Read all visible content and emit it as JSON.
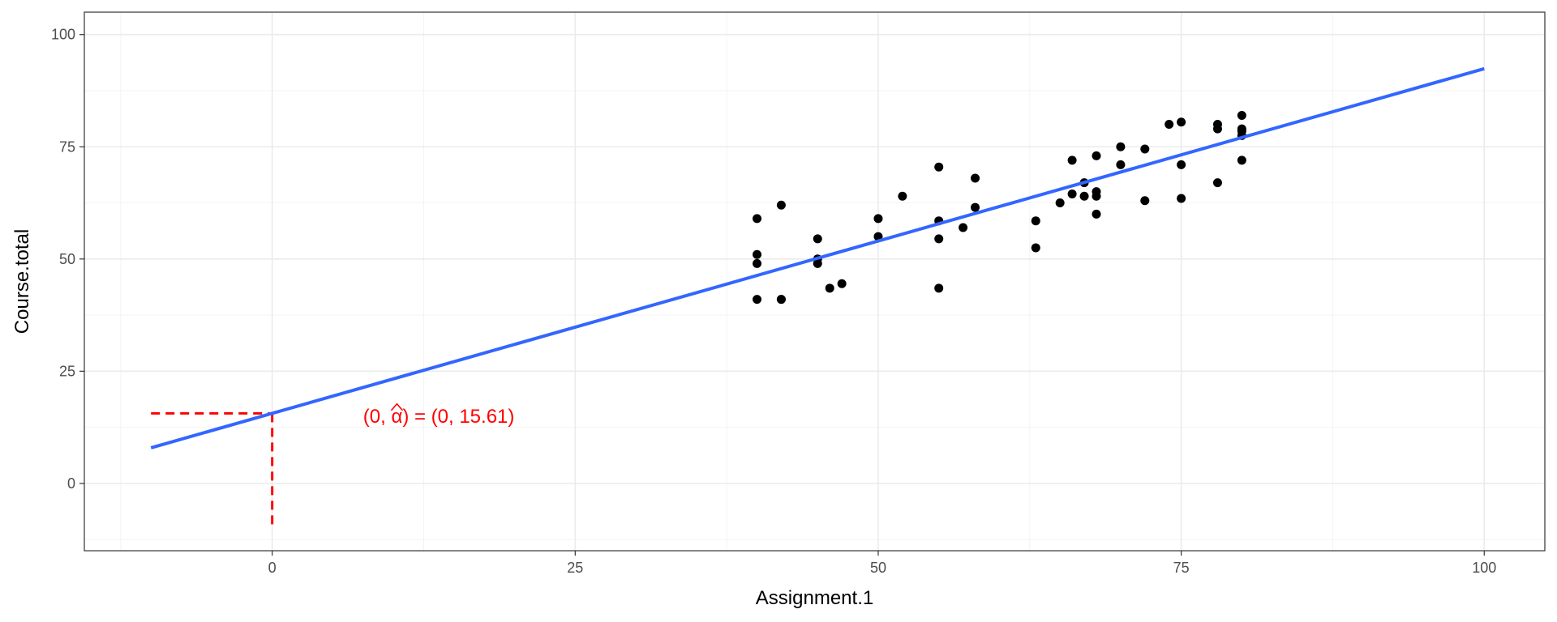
{
  "chart_data": {
    "type": "scatter",
    "xlabel": "Assignment.1",
    "ylabel": "Course.total",
    "xlim": [
      -15.5,
      105
    ],
    "ylim": [
      -15,
      105
    ],
    "x_ticks": [
      0,
      25,
      50,
      75,
      100
    ],
    "y_ticks": [
      0,
      25,
      50,
      75,
      100
    ],
    "grid": true,
    "theme": "bw",
    "points": [
      [
        40,
        59
      ],
      [
        40,
        51
      ],
      [
        40,
        49
      ],
      [
        40,
        41
      ],
      [
        42,
        62
      ],
      [
        42,
        41
      ],
      [
        42,
        41
      ],
      [
        45,
        54.5
      ],
      [
        45,
        50
      ],
      [
        45,
        49
      ],
      [
        46,
        43.5
      ],
      [
        47,
        44.5
      ],
      [
        50,
        59
      ],
      [
        50,
        55
      ],
      [
        52,
        64
      ],
      [
        55,
        70.5
      ],
      [
        55,
        58.5
      ],
      [
        55,
        54.5
      ],
      [
        55,
        43.5
      ],
      [
        57,
        57
      ],
      [
        58,
        68
      ],
      [
        58,
        61.5
      ],
      [
        63,
        58.5
      ],
      [
        63,
        52.5
      ],
      [
        65,
        62.5
      ],
      [
        66,
        72
      ],
      [
        66,
        64.5
      ],
      [
        67,
        67
      ],
      [
        67,
        64
      ],
      [
        68,
        73
      ],
      [
        68,
        65
      ],
      [
        68,
        64
      ],
      [
        68,
        60
      ],
      [
        70,
        75
      ],
      [
        70,
        71
      ],
      [
        72,
        74.5
      ],
      [
        72,
        63
      ],
      [
        74,
        80
      ],
      [
        75,
        80.5
      ],
      [
        75,
        71
      ],
      [
        75,
        63.5
      ],
      [
        78,
        80
      ],
      [
        78,
        79
      ],
      [
        78,
        67
      ],
      [
        80,
        82
      ],
      [
        80,
        79
      ],
      [
        80,
        78.5
      ],
      [
        80,
        77.5
      ],
      [
        80,
        72
      ]
    ],
    "regression_line": {
      "intercept": 15.61,
      "slope": 0.768,
      "x_range": [
        -10,
        100
      ],
      "color": "#3366FF"
    },
    "intercept_marker": {
      "x": 0,
      "y": 15.61,
      "color": "#FF0000"
    },
    "annotation": {
      "prefix": "(0, ",
      "symbol": "α",
      "suffix": ") = (0, 15.61)",
      "anchor_x": 7.5,
      "anchor_y": 15,
      "color": "#FF0000"
    },
    "point_color": "#000000"
  }
}
